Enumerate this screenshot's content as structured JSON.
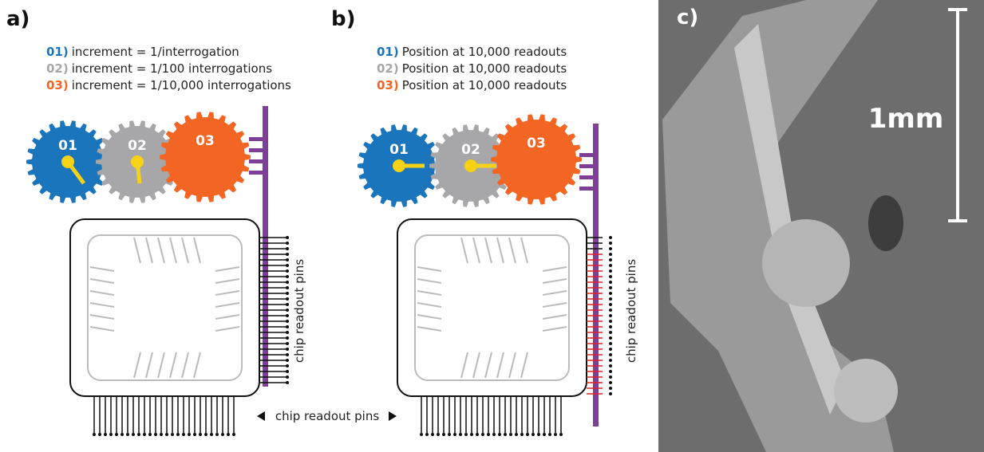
{
  "panels": [
    {
      "label": "a)",
      "legend": [
        {
          "num": "01)",
          "text": "increment = 1/interrogation"
        },
        {
          "num": "02)",
          "text": "increment = 1/100 interrogations"
        },
        {
          "num": "03)",
          "text": "increment = 1/10,000 interrogations"
        }
      ],
      "gears": [
        "01",
        "02",
        "03"
      ],
      "pins_label": "chip readout pins"
    },
    {
      "label": "b)",
      "legend": [
        {
          "num": "01)",
          "text": "Position at 10,000 readouts"
        },
        {
          "num": "02)",
          "text": "Position at 10,000 readouts"
        },
        {
          "num": "03)",
          "text": "Position at 10,000 readouts"
        }
      ],
      "gears": [
        "01",
        "02",
        "03"
      ],
      "pins_label": "chip readout pins"
    },
    {
      "label": "c)",
      "scale_label": "1mm"
    }
  ],
  "bottom_pins_label": "chip readout pins"
}
